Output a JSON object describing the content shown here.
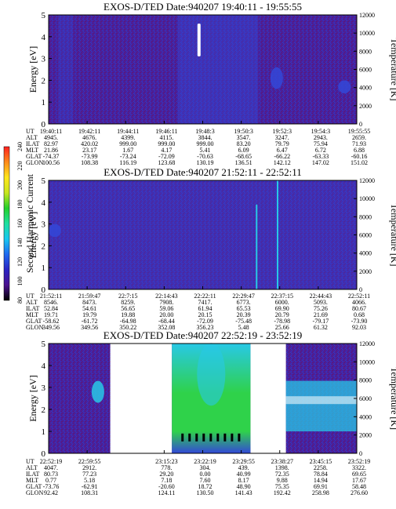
{
  "colors": {
    "background_purple": "#4a1f9e",
    "speckle_dark": "#5a1b72",
    "speckle_blue": "#2e3cc4",
    "mid_blue": "#3348d8",
    "cyan": "#28c8e6",
    "green": "#2fd24a",
    "white": "#ffffff",
    "black": "#000000"
  },
  "colorbar": {
    "label": "Second Harmonic Current",
    "ticks": [
      "80",
      "100",
      "120",
      "140",
      "160",
      "180",
      "200",
      "220",
      "240"
    ],
    "stops": [
      "#000000",
      "#4b1190",
      "#2a24c4",
      "#1f6af0",
      "#18c8f0",
      "#1ee0a0",
      "#24d02a",
      "#c8e61e",
      "#ffe61a",
      "#ff8a1a",
      "#ff2020"
    ]
  },
  "chart_data": [
    {
      "type": "heatmap",
      "title": "EXOS-D/TED   Date:940207   19:40:11 - 19:55:55",
      "ylabel": "Energy [eV]",
      "y2label": "Temperature [K]",
      "ylim": [
        0,
        5
      ],
      "y2lim": [
        0,
        12000
      ],
      "yticks": [
        "0",
        "1",
        "2",
        "3",
        "4",
        "5"
      ],
      "y2ticks": [
        "0",
        "2000",
        "4000",
        "6000",
        "8000",
        "10000",
        "12000"
      ],
      "row_labels": [
        "UT",
        "ALT",
        "ILAT",
        "MLT",
        "GLAT",
        "GLON"
      ],
      "columns": [
        [
          "19:40:11",
          "4945.",
          "82.97",
          "21.86",
          "-74.37",
          "100.56"
        ],
        [
          "19:42:11",
          "4676.",
          "420.02",
          "23.17",
          "-73.99",
          "108.38"
        ],
        [
          "19:44:11",
          "4399.",
          "999.00",
          "1.67",
          "-73.24",
          "116.19"
        ],
        [
          "19:46:11",
          "4115.",
          "999.00",
          "4.17",
          "-72.09",
          "123.68"
        ],
        [
          "19:48:3",
          "3844.",
          "999.00",
          "5.41",
          "-70.63",
          "130.19"
        ],
        [
          "19:50:3",
          "3547.",
          "83.20",
          "6.09",
          "-68.65",
          "136.51"
        ],
        [
          "19:52:3",
          "3247.",
          "79.79",
          "6.47",
          "-66.22",
          "142.12"
        ],
        [
          "19:54:3",
          "2943.",
          "75.94",
          "6.72",
          "-63.33",
          "147.02"
        ],
        [
          "19:55:55",
          "2659.",
          "71.93",
          "6.88",
          "-60.16",
          "151.02"
        ]
      ],
      "data_gaps": [],
      "features": [
        {
          "kind": "streak",
          "color": "white",
          "x_frac": 0.488,
          "y_range": [
            3.1,
            4.6
          ]
        },
        {
          "kind": "blob",
          "color": "blue",
          "x_frac": 0.74,
          "y_range": [
            1.6,
            2.6
          ]
        },
        {
          "kind": "blob",
          "color": "blue",
          "x_frac": 0.96,
          "y_range": [
            1.4,
            2.0
          ]
        }
      ]
    },
    {
      "type": "heatmap",
      "title": "EXOS-D/TED   Date:940207   21:52:11 - 22:52:11",
      "ylabel": "Energy [eV]",
      "y2label": "Temperature [K]",
      "ylim": [
        0,
        5
      ],
      "y2lim": [
        0,
        12000
      ],
      "yticks": [
        "0",
        "1",
        "2",
        "3",
        "4",
        "5"
      ],
      "y2ticks": [
        "0",
        "2000",
        "4000",
        "6000",
        "8000",
        "10000",
        "12000"
      ],
      "row_labels": [
        "UT",
        "ALT",
        "ILAT",
        "MLT",
        "GLAT",
        "GLON"
      ],
      "columns": [
        [
          "21:52:11",
          "8546.",
          "52.84",
          "19.71",
          "-58.62",
          "349.56"
        ],
        [
          "21:59:47",
          "8473.",
          "54.61",
          "19.79",
          "-61.72",
          "349.56"
        ],
        [
          "22:7:15",
          "8259.",
          "56.65",
          "19.88",
          "-64.98",
          "350.22"
        ],
        [
          "22:14:43",
          "7908.",
          "59.06",
          "20.00",
          "-68.44",
          "352.08"
        ],
        [
          "22:22:11",
          "7417.",
          "61.94",
          "20.15",
          "-72.09",
          "356.23"
        ],
        [
          "22:29:47",
          "6773.",
          "65.53",
          "20.39",
          "-75.48",
          "5.48"
        ],
        [
          "22:37:15",
          "6000.",
          "69.90",
          "20.79",
          "-78.98",
          "25.66"
        ],
        [
          "22:44:43",
          "5093.",
          "75.26",
          "21.69",
          "-79.17",
          "61.32"
        ],
        [
          "22:52:11",
          "4066.",
          "80.67",
          "0.68",
          "-73.90",
          "92.03"
        ]
      ],
      "data_gaps": [],
      "features": [
        {
          "kind": "blob",
          "color": "blue",
          "x_frac": 0.02,
          "y_range": [
            2.4,
            3.0
          ]
        },
        {
          "kind": "streak",
          "color": "cyan",
          "x_frac": 0.675,
          "y_range": [
            0,
            3.9
          ]
        },
        {
          "kind": "streak",
          "color": "cyan",
          "x_frac": 0.743,
          "y_range": [
            0,
            5
          ]
        }
      ]
    },
    {
      "type": "heatmap",
      "title": "EXOS-D/TED   Date:940207   22:52:19 - 23:52:19",
      "ylabel": "Energy [eV]",
      "y2label": "Temperature [K]",
      "ylim": [
        0,
        5
      ],
      "y2lim": [
        0,
        12000
      ],
      "yticks": [
        "0",
        "1",
        "2",
        "3",
        "4",
        "5"
      ],
      "y2ticks": [
        "0",
        "2000",
        "4000",
        "6000",
        "8000",
        "10000",
        "12000"
      ],
      "row_labels": [
        "UT",
        "ALT",
        "ILAT",
        "MLT",
        "GLAT",
        "GLON"
      ],
      "columns": [
        [
          "22:52:19",
          "4047.",
          "80.73",
          "0.77",
          "-73.76",
          "92.42"
        ],
        [
          "22:59:55",
          "2912.",
          "77.23",
          "5.18",
          "-62.91",
          "108.31"
        ],
        [
          "",
          "",
          "",
          "",
          "",
          ""
        ],
        [
          "23:15:23",
          "778.",
          "29.20",
          "7.18",
          "-20.60",
          "124.11"
        ],
        [
          "23:22:19",
          "304.",
          "0.00",
          "7.60",
          "18.72",
          "130.50"
        ],
        [
          "23:29:55",
          "439.",
          "40.99",
          "8.17",
          "48.90",
          "141.43"
        ],
        [
          "23:38:27",
          "1398.",
          "72.35",
          "9.88",
          "75.35",
          "192.42"
        ],
        [
          "23:45:15",
          "2258.",
          "78.84",
          "14.94",
          "69.91",
          "258.98"
        ],
        [
          "23:52:19",
          "3322.",
          "69.65",
          "17.67",
          "58.48",
          "276.60"
        ]
      ],
      "data_gaps": [
        [
          0.2,
          0.4
        ],
        [
          0.655,
          0.77
        ]
      ],
      "features": [
        {
          "kind": "blob",
          "color": "cyan",
          "x_frac": 0.16,
          "y_range": [
            2.3,
            3.3
          ]
        },
        {
          "kind": "region",
          "color": "green",
          "x_range": [
            0.4,
            0.655
          ],
          "y_range": [
            0,
            5
          ]
        },
        {
          "kind": "region",
          "color": "cyan",
          "x_range": [
            0.77,
            1.0
          ],
          "y_range": [
            1.0,
            3.3
          ]
        }
      ]
    }
  ]
}
